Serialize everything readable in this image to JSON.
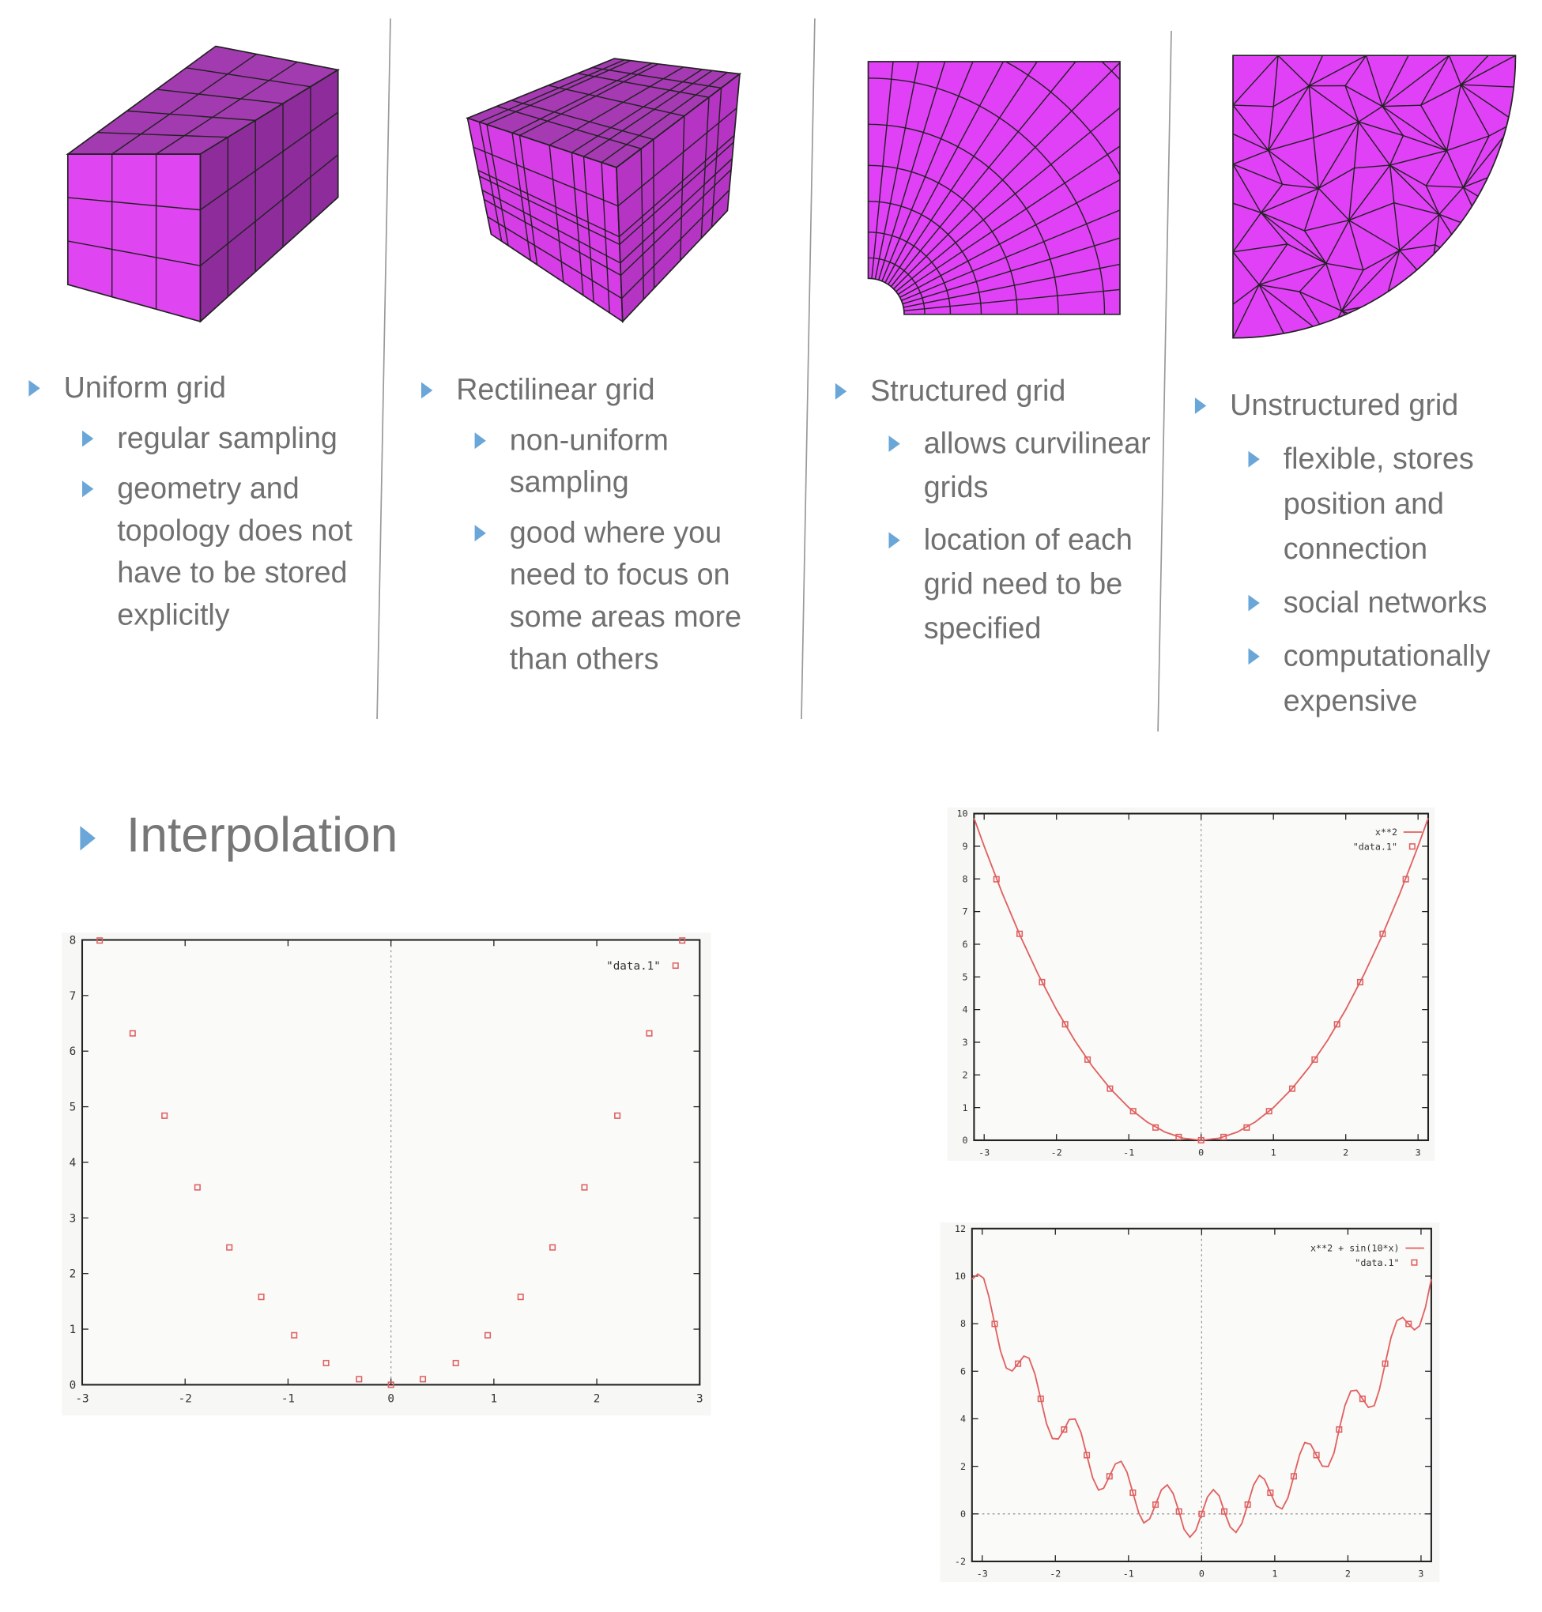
{
  "columns": [
    {
      "title": "Uniform grid",
      "items": [
        "regular sampling",
        "geometry and topology does not have to be stored explicitly"
      ]
    },
    {
      "title": "Rectilinear grid",
      "items": [
        "non-uniform sampling",
        "good where you need to focus on some areas more than others"
      ]
    },
    {
      "title": "Structured grid",
      "items": [
        "allows curvilinear grids",
        "location of each grid need to be specified"
      ]
    },
    {
      "title": "Unstructured grid",
      "items": [
        "flexible, stores position and connection",
        "social networks",
        "computationally expensive"
      ]
    }
  ],
  "heading": "Interpolation",
  "chart_data": [
    {
      "type": "scatter",
      "xlim": [
        -3,
        3
      ],
      "ylim": [
        0,
        8
      ],
      "xticks": [
        -3,
        -2,
        -1,
        0,
        1,
        2,
        3
      ],
      "yticks": [
        0,
        1,
        2,
        3,
        4,
        5,
        6,
        7,
        8
      ],
      "series": [
        {
          "name": "\"data.1\"",
          "mark": "points",
          "color": "#e06060",
          "x": [
            -2.83,
            -2.51,
            -2.2,
            -1.88,
            -1.57,
            -1.26,
            -0.94,
            -0.63,
            -0.31,
            0,
            0.31,
            0.63,
            0.94,
            1.26,
            1.57,
            1.88,
            2.2,
            2.51,
            2.83
          ],
          "values": [
            7.99,
            6.32,
            4.84,
            3.55,
            2.47,
            1.58,
            0.89,
            0.39,
            0.1,
            0,
            0.1,
            0.39,
            0.89,
            1.58,
            2.47,
            3.55,
            4.84,
            6.32,
            7.99
          ]
        }
      ]
    },
    {
      "type": "line",
      "xlim": [
        -3.14,
        3.14
      ],
      "ylim": [
        0,
        10
      ],
      "xticks": [
        -3,
        -2,
        -1,
        0,
        1,
        2,
        3
      ],
      "yticks": [
        0,
        1,
        2,
        3,
        4,
        5,
        6,
        7,
        8,
        9,
        10
      ],
      "series": [
        {
          "name": "x**2",
          "mark": "line",
          "color": "#e06060",
          "x": [
            -3.14,
            -3,
            -2.75,
            -2.5,
            -2.25,
            -2,
            -1.75,
            -1.5,
            -1.25,
            -1,
            -0.75,
            -0.5,
            -0.25,
            0,
            0.25,
            0.5,
            0.75,
            1,
            1.25,
            1.5,
            1.75,
            2,
            2.25,
            2.5,
            2.75,
            3,
            3.14
          ],
          "values": [
            9.86,
            9,
            7.5625,
            6.25,
            5.0625,
            4,
            3.0625,
            2.25,
            1.5625,
            1,
            0.5625,
            0.25,
            0.0625,
            0,
            0.0625,
            0.25,
            0.5625,
            1,
            1.5625,
            2.25,
            3.0625,
            4,
            5.0625,
            6.25,
            7.5625,
            9,
            9.86
          ]
        },
        {
          "name": "\"data.1\"",
          "mark": "points",
          "color": "#e06060",
          "x": [
            -2.83,
            -2.51,
            -2.2,
            -1.88,
            -1.57,
            -1.26,
            -0.94,
            -0.63,
            -0.31,
            0,
            0.31,
            0.63,
            0.94,
            1.26,
            1.57,
            1.88,
            2.2,
            2.51,
            2.83
          ],
          "values": [
            7.99,
            6.32,
            4.84,
            3.55,
            2.47,
            1.58,
            0.89,
            0.39,
            0.1,
            0,
            0.1,
            0.39,
            0.89,
            1.58,
            2.47,
            3.55,
            4.84,
            6.32,
            7.99
          ]
        }
      ]
    },
    {
      "type": "line",
      "xlim": [
        -3.14,
        3.14
      ],
      "ylim": [
        -2,
        12
      ],
      "xticks": [
        -3,
        -2,
        -1,
        0,
        1,
        2,
        3
      ],
      "yticks": [
        -2,
        0,
        2,
        4,
        6,
        8,
        10,
        12
      ],
      "series": [
        {
          "name": "x**2 + sin(10*x)",
          "mark": "line",
          "color": "#e06060",
          "x": [
            -3.14,
            -3.06,
            -2.98,
            -2.91,
            -2.83,
            -2.75,
            -2.67,
            -2.59,
            -2.51,
            -2.43,
            -2.36,
            -2.28,
            -2.2,
            -2.12,
            -2.04,
            -1.96,
            -1.88,
            -1.81,
            -1.73,
            -1.65,
            -1.57,
            -1.49,
            -1.41,
            -1.34,
            -1.26,
            -1.18,
            -1.1,
            -1.02,
            -0.94,
            -0.86,
            -0.79,
            -0.71,
            -0.63,
            -0.55,
            -0.47,
            -0.39,
            -0.31,
            -0.24,
            -0.16,
            -0.08,
            0,
            0.08,
            0.16,
            0.24,
            0.31,
            0.39,
            0.47,
            0.55,
            0.63,
            0.71,
            0.79,
            0.86,
            0.94,
            1.02,
            1.1,
            1.18,
            1.26,
            1.34,
            1.41,
            1.49,
            1.57,
            1.65,
            1.73,
            1.81,
            1.88,
            1.96,
            2.04,
            2.12,
            2.2,
            2.28,
            2.36,
            2.43,
            2.51,
            2.59,
            2.67,
            2.75,
            2.83,
            2.91,
            2.98,
            3.06,
            3.14
          ],
          "values": [
            9.87,
            10.09,
            9.91,
            9.15,
            7.99,
            6.85,
            6.13,
            6.01,
            6.32,
            6.64,
            6.55,
            5.89,
            4.84,
            3.79,
            3.17,
            3.15,
            3.55,
            3.97,
            3.99,
            3.43,
            2.47,
            1.52,
            1.0,
            1.08,
            1.58,
            2.1,
            2.21,
            1.75,
            0.89,
            0.04,
            -0.38,
            -0.21,
            0.39,
            1.01,
            1.22,
            0.86,
            0.1,
            -0.65,
            -0.98,
            -0.7,
            0,
            0.71,
            1.02,
            0.76,
            0.1,
            -0.55,
            -0.78,
            -0.4,
            0.39,
            1.21,
            1.62,
            1.45,
            0.89,
            0.34,
            0.21,
            0.68,
            1.58,
            2.49,
            3.0,
            2.93,
            2.47,
            2.01,
            1.99,
            2.56,
            3.55,
            4.56,
            5.17,
            5.2,
            4.84,
            4.48,
            4.55,
            5.22,
            6.32,
            7.42,
            8.13,
            8.26,
            7.99,
            7.74,
            7.91,
            8.68,
            9.87
          ]
        },
        {
          "name": "\"data.1\"",
          "mark": "points",
          "color": "#e06060",
          "x": [
            -2.83,
            -2.51,
            -2.2,
            -1.88,
            -1.57,
            -1.26,
            -0.94,
            -0.63,
            -0.31,
            0,
            0.31,
            0.63,
            0.94,
            1.26,
            1.57,
            1.88,
            2.2,
            2.51,
            2.83
          ],
          "values": [
            7.99,
            6.32,
            4.84,
            3.55,
            2.47,
            1.58,
            0.89,
            0.39,
            0.1,
            0,
            0.1,
            0.39,
            0.89,
            1.58,
            2.47,
            3.55,
            4.84,
            6.32,
            7.99
          ]
        }
      ]
    }
  ]
}
